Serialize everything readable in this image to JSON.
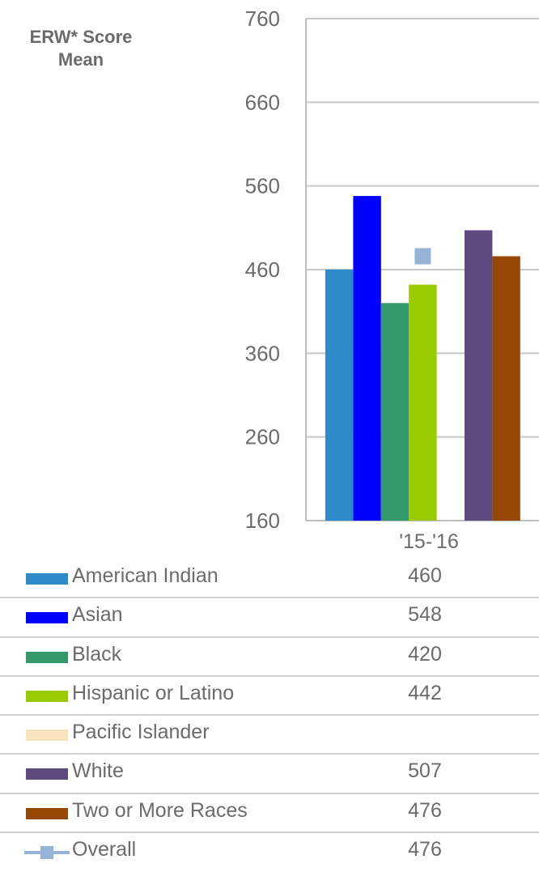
{
  "chart_data": {
    "type": "bar",
    "ylabel": "ERW* Score Mean",
    "ylim": [
      160,
      760
    ],
    "yticks": [
      "760",
      "660",
      "560",
      "460",
      "360",
      "260",
      "160"
    ],
    "categories": [
      "'15-'16"
    ],
    "series": [
      {
        "name": "American Indian",
        "values": [
          460
        ],
        "color": "#2e8bc9",
        "display": "460"
      },
      {
        "name": "Asian",
        "values": [
          548
        ],
        "color": "#0000ff",
        "display": "548"
      },
      {
        "name": "Black",
        "values": [
          420
        ],
        "color": "#33986a",
        "display": "420"
      },
      {
        "name": "Hispanic or Latino",
        "values": [
          442
        ],
        "color": "#99cc00",
        "display": "442"
      },
      {
        "name": "Pacific Islander",
        "values": [
          null
        ],
        "color": "#f7e4bd",
        "display": ""
      },
      {
        "name": "White",
        "values": [
          507
        ],
        "color": "#5f4a7f",
        "display": "507"
      },
      {
        "name": "Two or More Races",
        "values": [
          476
        ],
        "color": "#974706",
        "display": "476"
      }
    ],
    "overall": {
      "name": "Overall",
      "values": [
        476
      ],
      "color": "#95b3d7",
      "display": "476"
    },
    "grid": true,
    "legend": "bottom-table"
  }
}
